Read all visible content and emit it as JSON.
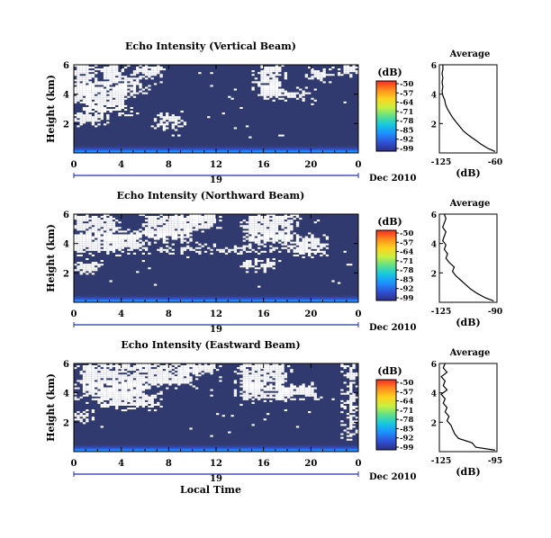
{
  "colors": {
    "background_field": "#313a6e",
    "white": "#ffffff",
    "line": "#000000",
    "colorbar_stops": [
      "#2e2f84",
      "#2f52d6",
      "#1e90ff",
      "#14c8e0",
      "#5fe08a",
      "#c8f040",
      "#ffd21e",
      "#ff8c1e",
      "#ff2a1e"
    ]
  },
  "colorbar": {
    "unit": "(dB)",
    "ticks": [
      "-50",
      "-57",
      "-64",
      "-71",
      "-78",
      "-85",
      "-92",
      "-99"
    ]
  },
  "date_label": "Dec 2010",
  "day_label": "19",
  "x_axis_label": "Local Time",
  "y_axis_label": "Height (km)",
  "avg_title": "Average",
  "avg_xlabel": "(dB)",
  "chart_data": [
    {
      "type": "heatmap",
      "title": "Echo Intensity (Vertical Beam)",
      "x_ticks": [
        "0",
        "4",
        "8",
        "12",
        "16",
        "20",
        "0"
      ],
      "y_ticks": [
        "2",
        "4",
        "6"
      ],
      "xlim": [
        0,
        24
      ],
      "ylim": [
        0,
        6
      ],
      "value_range_db": [
        -99,
        -50
      ],
      "noise_floor_db": -99,
      "white_regions": [
        {
          "t0": 0.0,
          "t1": 1.5,
          "h0": 3.4,
          "h1": 6.0
        },
        {
          "t0": 1.0,
          "t1": 4.5,
          "h0": 2.8,
          "h1": 4.6
        },
        {
          "t0": 2.2,
          "t1": 4.0,
          "h0": 4.6,
          "h1": 6.0
        },
        {
          "t0": 4.0,
          "t1": 6.0,
          "h0": 4.0,
          "h1": 5.3
        },
        {
          "t0": 5.0,
          "t1": 7.5,
          "h0": 5.2,
          "h1": 6.0
        },
        {
          "t0": 0.0,
          "t1": 2.5,
          "h0": 2.0,
          "h1": 2.8
        },
        {
          "t0": 7.0,
          "t1": 9.0,
          "h0": 1.8,
          "h1": 2.6
        },
        {
          "t0": 15.5,
          "t1": 17.5,
          "h0": 3.8,
          "h1": 6.0
        },
        {
          "t0": 17.5,
          "t1": 20.0,
          "h0": 3.8,
          "h1": 4.3
        },
        {
          "t0": 20.0,
          "t1": 21.5,
          "h0": 5.0,
          "h1": 5.6
        },
        {
          "t0": 22.5,
          "t1": 24.0,
          "h0": 5.4,
          "h1": 6.0
        }
      ],
      "average_profile": {
        "xlim": [
          -125,
          -60
        ],
        "x_ticks": [
          "-125",
          "-60"
        ],
        "y_ticks": [
          "2",
          "4",
          "6"
        ],
        "ylim": [
          0,
          6
        ],
        "h": [
          0.1,
          0.3,
          0.6,
          0.9,
          1.2,
          1.5,
          1.8,
          2.1,
          2.4,
          2.7,
          3.0,
          3.3,
          3.6,
          3.9,
          4.2,
          4.5,
          4.8,
          5.1,
          5.4,
          5.7,
          6.0
        ],
        "db": [
          -62,
          -70,
          -78,
          -85,
          -92,
          -98,
          -102,
          -106,
          -110,
          -113,
          -116,
          -118,
          -119,
          -121,
          -122,
          -121,
          -122,
          -121,
          -122,
          -121,
          -121
        ]
      }
    },
    {
      "type": "heatmap",
      "title": "Echo Intensity (Northward Beam)",
      "x_ticks": [
        "0",
        "4",
        "8",
        "12",
        "16",
        "20",
        "0"
      ],
      "y_ticks": [
        "2",
        "4",
        "6"
      ],
      "xlim": [
        0,
        24
      ],
      "ylim": [
        0,
        6
      ],
      "value_range_db": [
        -99,
        -50
      ],
      "noise_floor_db": -99,
      "white_regions": [
        {
          "t0": 0.0,
          "t1": 3.5,
          "h0": 3.4,
          "h1": 6.0
        },
        {
          "t0": 3.0,
          "t1": 6.0,
          "h0": 3.5,
          "h1": 4.8
        },
        {
          "t0": 6.0,
          "t1": 10.0,
          "h0": 4.2,
          "h1": 6.0
        },
        {
          "t0": 9.5,
          "t1": 12.0,
          "h0": 5.0,
          "h1": 6.0
        },
        {
          "t0": 0.0,
          "t1": 2.0,
          "h0": 2.0,
          "h1": 2.8
        },
        {
          "t0": 7.0,
          "t1": 21.0,
          "h0": 3.5,
          "h1": 3.8
        },
        {
          "t0": 14.5,
          "t1": 18.5,
          "h0": 4.0,
          "h1": 6.0
        },
        {
          "t0": 18.5,
          "t1": 21.0,
          "h0": 3.3,
          "h1": 4.5
        },
        {
          "t0": 14.0,
          "t1": 17.0,
          "h0": 2.3,
          "h1": 2.8
        }
      ],
      "average_profile": {
        "xlim": [
          -125,
          -90
        ],
        "x_ticks": [
          "-125",
          "-90"
        ],
        "y_ticks": [
          "2",
          "4",
          "6"
        ],
        "ylim": [
          0,
          6
        ],
        "h": [
          0.1,
          0.3,
          0.6,
          0.9,
          1.2,
          1.5,
          1.8,
          2.1,
          2.4,
          2.7,
          3.0,
          3.3,
          3.6,
          3.9,
          4.2,
          4.5,
          4.8,
          5.1,
          5.4,
          5.7,
          6.0
        ],
        "db": [
          -92,
          -97,
          -102,
          -106,
          -109,
          -112,
          -115,
          -117,
          -116,
          -119,
          -121,
          -120,
          -122,
          -121,
          -123,
          -122,
          -121,
          -123,
          -122,
          -121,
          -122
        ]
      }
    },
    {
      "type": "heatmap",
      "title": "Echo Intensity (Eastward Beam)",
      "x_ticks": [
        "0",
        "4",
        "8",
        "12",
        "16",
        "20",
        "0"
      ],
      "y_ticks": [
        "2",
        "4",
        "6"
      ],
      "xlim": [
        0,
        24
      ],
      "ylim": [
        0,
        6
      ],
      "value_range_db": [
        -99,
        -50
      ],
      "noise_floor_db": -99,
      "white_regions": [
        {
          "t0": 0.5,
          "t1": 6.0,
          "h0": 3.8,
          "h1": 6.0
        },
        {
          "t0": 2.0,
          "t1": 7.0,
          "h0": 3.0,
          "h1": 4.0
        },
        {
          "t0": 6.0,
          "t1": 10.0,
          "h0": 4.5,
          "h1": 6.0
        },
        {
          "t0": 9.5,
          "t1": 12.0,
          "h0": 5.3,
          "h1": 6.0
        },
        {
          "t0": 14.0,
          "t1": 18.0,
          "h0": 3.5,
          "h1": 6.0
        },
        {
          "t0": 17.5,
          "t1": 20.5,
          "h0": 3.7,
          "h1": 4.5
        },
        {
          "t0": 0.0,
          "t1": 1.5,
          "h0": 2.0,
          "h1": 2.6
        },
        {
          "t0": 23.0,
          "t1": 23.8,
          "h0": 1.0,
          "h1": 6.0
        }
      ],
      "average_profile": {
        "xlim": [
          -125,
          -95
        ],
        "x_ticks": [
          "-125",
          "-95"
        ],
        "y_ticks": [
          "2",
          "4",
          "6"
        ],
        "ylim": [
          0,
          6
        ],
        "h": [
          0.1,
          0.3,
          0.6,
          0.9,
          1.2,
          1.5,
          1.8,
          2.1,
          2.4,
          2.7,
          3.0,
          3.3,
          3.6,
          3.9,
          4.2,
          4.5,
          4.8,
          5.1,
          5.4,
          5.7,
          6.0
        ],
        "db": [
          -96,
          -106,
          -108,
          -115,
          -117,
          -118,
          -119,
          -121,
          -120,
          -122,
          -121,
          -123,
          -122,
          -124,
          -121,
          -123,
          -122,
          -124,
          -121,
          -123,
          -122
        ]
      }
    }
  ]
}
